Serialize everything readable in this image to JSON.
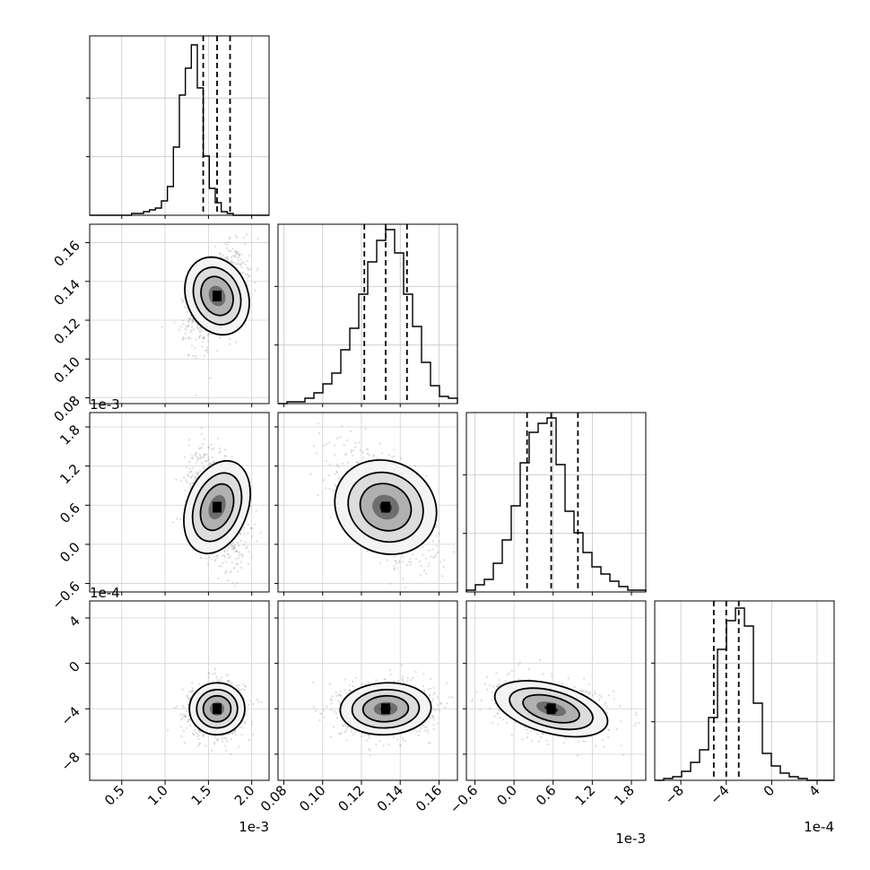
{
  "chart_data": {
    "type": "corner",
    "parameters": [
      {
        "offset_label": "1e-3",
        "ticks": [
          "0.5",
          "1.0",
          "1.5",
          "2.0"
        ],
        "tick_values": [
          0.5,
          1.0,
          1.5,
          2.0
        ],
        "range": [
          0.13,
          2.2
        ],
        "quantiles": [
          1.44,
          1.6,
          1.75
        ]
      },
      {
        "offset_label": "",
        "ticks": [
          "0.08",
          "0.10",
          "0.12",
          "0.14",
          "0.16"
        ],
        "tick_values": [
          0.08,
          0.1,
          0.12,
          0.14,
          0.16
        ],
        "range": [
          0.077,
          0.1695
        ],
        "quantiles": [
          0.1215,
          0.1325,
          0.1435
        ]
      },
      {
        "offset_label": "1e-3",
        "ticks": [
          "-0.6",
          "0.0",
          "0.6",
          "1.2",
          "1.8"
        ],
        "tick_values": [
          -0.6,
          0.0,
          0.6,
          1.2,
          1.8
        ],
        "range": [
          -0.73,
          2.02
        ],
        "quantiles": [
          0.2,
          0.57,
          0.98
        ]
      },
      {
        "offset_label": "1e-4",
        "ticks": [
          "-8",
          "-4",
          "0",
          "4"
        ],
        "tick_values": [
          -8,
          -4,
          0,
          4
        ],
        "range": [
          -10.3,
          5.5
        ],
        "quantiles": [
          -5.1,
          -4.0,
          -2.9
        ]
      }
    ],
    "histograms": [
      {
        "edges_from": 0.13,
        "edges_to": 2.2,
        "counts": [
          0,
          0,
          0,
          0,
          0,
          0,
          0,
          0.01,
          0.01,
          0.02,
          0.03,
          0.04,
          0.08,
          0.16,
          0.38,
          0.67,
          0.82,
          0.95,
          0.71,
          0.33,
          0.15,
          0.07,
          0.02,
          0.01,
          0.0,
          0.0,
          0.0,
          0.0,
          0.0,
          0.0
        ]
      },
      {
        "edges_from": 0.077,
        "edges_to": 0.1695,
        "counts": [
          0,
          0.01,
          0.01,
          0.03,
          0.06,
          0.11,
          0.17,
          0.3,
          0.42,
          0.61,
          0.79,
          0.91,
          0.97,
          0.84,
          0.61,
          0.43,
          0.23,
          0.1,
          0.04,
          0.03
        ]
      },
      {
        "edges_from": -0.73,
        "edges_to": 2.02,
        "counts": [
          0.01,
          0.04,
          0.07,
          0.16,
          0.29,
          0.48,
          0.72,
          0.89,
          0.94,
          0.97,
          0.71,
          0.45,
          0.33,
          0.22,
          0.14,
          0.1,
          0.06,
          0.03,
          0.01,
          0.01
        ]
      },
      {
        "edges_from": -10.3,
        "edges_to": 5.5,
        "counts": [
          0,
          0.01,
          0.02,
          0.05,
          0.1,
          0.17,
          0.35,
          0.73,
          0.89,
          0.96,
          0.86,
          0.43,
          0.15,
          0.08,
          0.04,
          0.02,
          0.01,
          0,
          0,
          0
        ]
      }
    ],
    "pairs": [
      {
        "x": 0,
        "y": 1,
        "center": [
          1.6,
          0.1325
        ],
        "sigma": [
          0.15,
          0.011
        ],
        "rho": 0.45
      },
      {
        "x": 0,
        "y": 2,
        "center": [
          1.6,
          0.57
        ],
        "sigma": [
          0.15,
          0.39
        ],
        "rho": -0.42
      },
      {
        "x": 1,
        "y": 2,
        "center": [
          0.1325,
          0.57
        ],
        "sigma": [
          0.011,
          0.39
        ],
        "rho": -0.6
      },
      {
        "x": 0,
        "y": 3,
        "center": [
          1.6,
          -4.0
        ],
        "sigma": [
          0.15,
          1.1
        ],
        "rho": 0.05
      },
      {
        "x": 1,
        "y": 3,
        "center": [
          0.1325,
          -4.0
        ],
        "sigma": [
          0.011,
          1.1
        ],
        "rho": 0.05
      },
      {
        "x": 2,
        "y": 3,
        "center": [
          0.57,
          -4.0
        ],
        "sigma": [
          0.39,
          1.1
        ],
        "rho": -0.3
      }
    ],
    "grid": true
  }
}
